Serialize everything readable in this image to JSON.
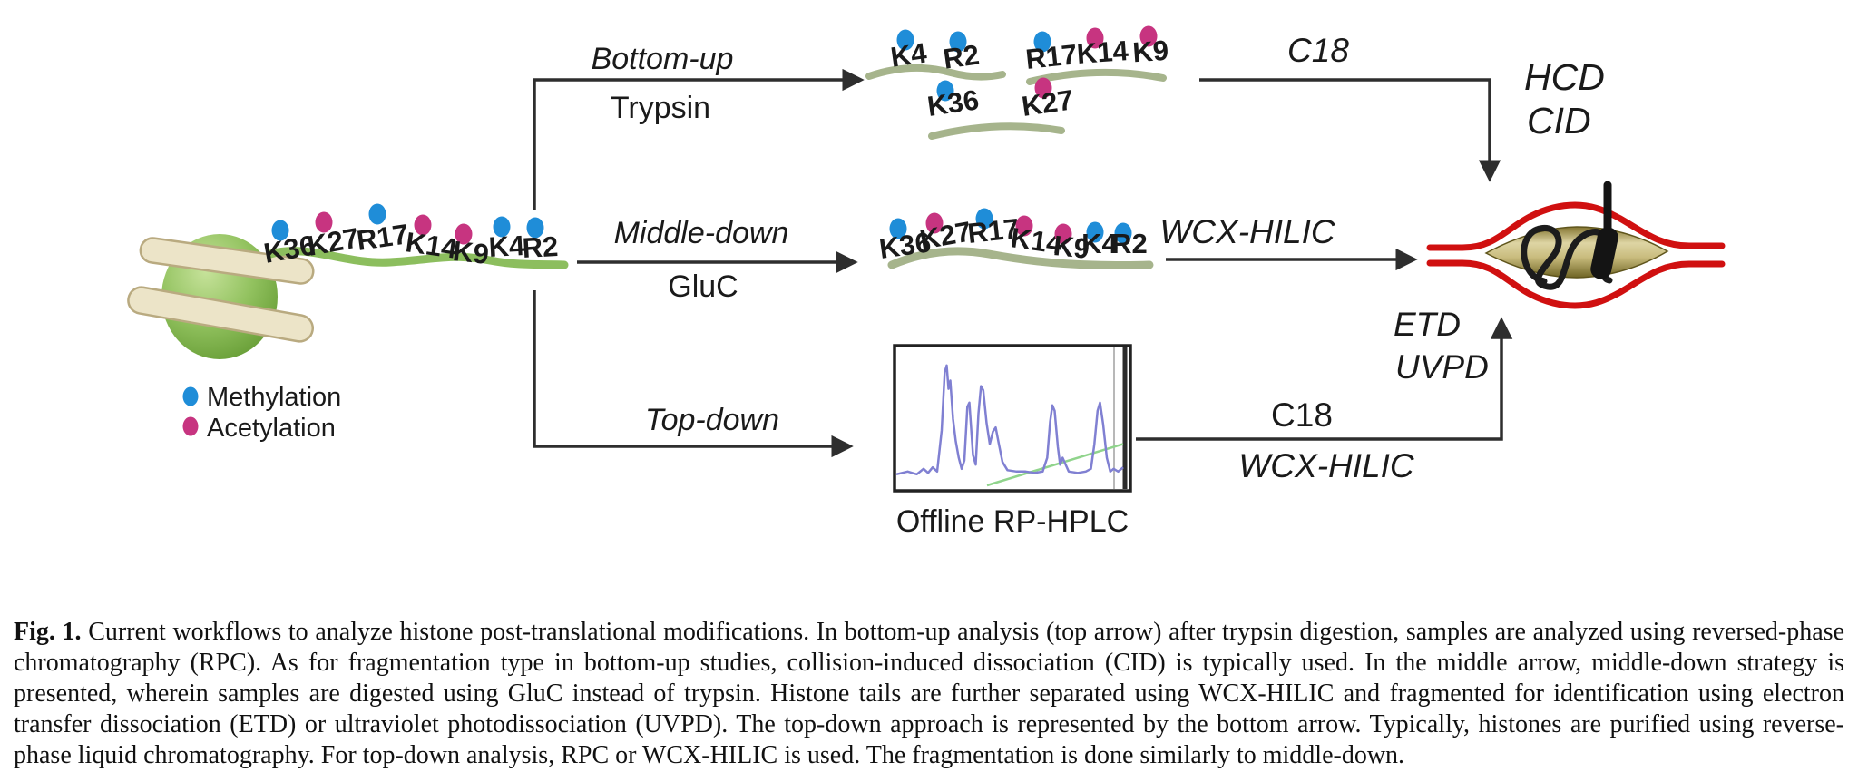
{
  "figure": {
    "mod_colors": {
      "methylation": "#1f8dd8",
      "acetylation": "#c73480"
    },
    "accent_colors": {
      "histone_tail_green": "#8cbe5e",
      "peptide_green": "#a6b48c",
      "dna_ribbon_cream": "#ece4c8",
      "ms_flow_red": "#d01010",
      "ms_lens_gold": "#b7a85c",
      "hplc_trace_blue": "#8080d2",
      "hplc_gradient_green": "#90d48c"
    },
    "legend": {
      "items": [
        {
          "label": "Methylation",
          "mod": "methylation"
        },
        {
          "label": "Acetylation",
          "mod": "acetylation"
        }
      ]
    },
    "tail": {
      "sites": [
        {
          "label": "K36",
          "mod": "methylation"
        },
        {
          "label": "K27",
          "mod": "acetylation"
        },
        {
          "label": "R17",
          "mod": "methylation"
        },
        {
          "label": "K14",
          "mod": "acetylation"
        },
        {
          "label": "K9",
          "mod": "acetylation"
        },
        {
          "label": "K4",
          "mod": "methylation"
        },
        {
          "label": "R2",
          "mod": "methylation"
        }
      ]
    },
    "branches": {
      "bottom_up": {
        "title": "Bottom-up",
        "enzyme": "Trypsin",
        "separation": "C18",
        "fragmentation": [
          "HCD",
          "CID"
        ]
      },
      "middle_down": {
        "title": "Middle-down",
        "enzyme": "GluC",
        "separation": "WCX-HILIC",
        "fragmentation": [
          "ETD",
          "UVPD"
        ]
      },
      "top_down": {
        "title": "Top-down",
        "separations": [
          "C18",
          "WCX-HILIC"
        ],
        "purification": "Offline RP-HPLC"
      }
    },
    "peptides": {
      "bottom_up": [
        {
          "sites": [
            {
              "label": "K4",
              "mod": "methylation"
            },
            {
              "label": "R2",
              "mod": "methylation"
            }
          ]
        },
        {
          "sites": [
            {
              "label": "R17",
              "mod": "methylation"
            },
            {
              "label": "K14",
              "mod": "acetylation"
            },
            {
              "label": "K9",
              "mod": "acetylation"
            }
          ]
        },
        {
          "sites": [
            {
              "label": "K36",
              "mod": "methylation"
            },
            {
              "label": "K27",
              "mod": "acetylation"
            }
          ]
        }
      ],
      "middle_down": {
        "sites": [
          {
            "label": "K36",
            "mod": "methylation"
          },
          {
            "label": "K27",
            "mod": "acetylation"
          },
          {
            "label": "R17",
            "mod": "methylation"
          },
          {
            "label": "K14",
            "mod": "acetylation"
          },
          {
            "label": "K9",
            "mod": "acetylation"
          },
          {
            "label": "K4",
            "mod": "methylation"
          },
          {
            "label": "R2",
            "mod": "methylation"
          }
        ]
      }
    }
  },
  "chart_data": {
    "type": "line",
    "title": "Offline RP-HPLC",
    "description": "UV chromatogram thumbnail: tall peak near 22% of run, peak cluster at 30-45%, smaller peaks at ~69% and ~90%, with rising solvent-gradient line",
    "axes_labeled": false,
    "trace_color": "#8080d2",
    "gradient_color": "#90d48c",
    "trace": [
      [
        0.0,
        0.92
      ],
      [
        0.05,
        0.9
      ],
      [
        0.09,
        0.92
      ],
      [
        0.12,
        0.88
      ],
      [
        0.14,
        0.91
      ],
      [
        0.16,
        0.87
      ],
      [
        0.18,
        0.9
      ],
      [
        0.2,
        0.6
      ],
      [
        0.213,
        0.18
      ],
      [
        0.222,
        0.13
      ],
      [
        0.23,
        0.3
      ],
      [
        0.238,
        0.24
      ],
      [
        0.25,
        0.52
      ],
      [
        0.262,
        0.68
      ],
      [
        0.275,
        0.8
      ],
      [
        0.288,
        0.88
      ],
      [
        0.3,
        0.82
      ],
      [
        0.313,
        0.43
      ],
      [
        0.322,
        0.4
      ],
      [
        0.338,
        0.78
      ],
      [
        0.35,
        0.85
      ],
      [
        0.362,
        0.48
      ],
      [
        0.373,
        0.28
      ],
      [
        0.383,
        0.31
      ],
      [
        0.398,
        0.55
      ],
      [
        0.412,
        0.7
      ],
      [
        0.426,
        0.61
      ],
      [
        0.438,
        0.58
      ],
      [
        0.452,
        0.7
      ],
      [
        0.468,
        0.83
      ],
      [
        0.49,
        0.89
      ],
      [
        0.53,
        0.9
      ],
      [
        0.57,
        0.9
      ],
      [
        0.61,
        0.91
      ],
      [
        0.645,
        0.9
      ],
      [
        0.665,
        0.8
      ],
      [
        0.678,
        0.54
      ],
      [
        0.688,
        0.42
      ],
      [
        0.698,
        0.46
      ],
      [
        0.712,
        0.72
      ],
      [
        0.722,
        0.85
      ],
      [
        0.733,
        0.8
      ],
      [
        0.744,
        0.84
      ],
      [
        0.76,
        0.9
      ],
      [
        0.8,
        0.91
      ],
      [
        0.835,
        0.9
      ],
      [
        0.858,
        0.88
      ],
      [
        0.873,
        0.7
      ],
      [
        0.887,
        0.46
      ],
      [
        0.898,
        0.4
      ],
      [
        0.912,
        0.56
      ],
      [
        0.928,
        0.8
      ],
      [
        0.943,
        0.9
      ],
      [
        0.958,
        0.88
      ],
      [
        0.978,
        0.9
      ],
      [
        1.0,
        0.87
      ]
    ],
    "gradient_line": [
      [
        0.4,
        1.0
      ],
      [
        1.0,
        0.7
      ]
    ]
  },
  "caption": {
    "label": "Fig. 1.",
    "text": "Current workflows to analyze histone post-translational modifications. In bottom-up analysis (top arrow) after trypsin digestion, samples are analyzed using reversed-phase chromatography (RPC). As for fragmentation type in bottom-up studies, collision-induced dissociation (CID) is typically used. In the middle arrow, middle-down strategy is presented, wherein samples are digested using GluC instead of trypsin. Histone tails are further separated using WCX-HILIC and fragmented for identification using electron transfer dissociation (ETD) or ultraviolet photodissociation (UVPD). The top-down approach is represented by the bottom arrow. Typically, histones are purified using reverse-phase liquid chromatography. For top-down analysis, RPC or WCX-HILIC is used. The fragmentation is done similarly to middle-down."
  }
}
